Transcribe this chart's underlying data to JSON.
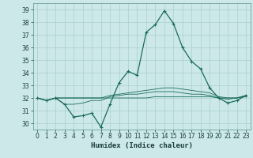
{
  "xlabel": "Humidex (Indice chaleur)",
  "background_color": "#cce8e8",
  "grid_color": "#aacfcf",
  "line_color": "#1a6b5a",
  "xlim": [
    -0.5,
    23.5
  ],
  "ylim": [
    29.5,
    39.5
  ],
  "xticks": [
    0,
    1,
    2,
    3,
    4,
    5,
    6,
    7,
    8,
    9,
    10,
    11,
    12,
    13,
    14,
    15,
    16,
    17,
    18,
    19,
    20,
    21,
    22,
    23
  ],
  "yticks": [
    30,
    31,
    32,
    33,
    34,
    35,
    36,
    37,
    38,
    39
  ],
  "series1": [
    32.0,
    31.8,
    32.0,
    31.5,
    30.5,
    30.6,
    30.8,
    29.7,
    31.5,
    33.2,
    34.1,
    33.8,
    37.2,
    37.8,
    38.9,
    37.9,
    36.0,
    34.9,
    34.3,
    32.8,
    32.0,
    31.6,
    31.8,
    32.2
  ],
  "series2": [
    32.0,
    31.8,
    32.0,
    32.0,
    32.0,
    32.0,
    32.0,
    32.0,
    32.0,
    32.0,
    32.0,
    32.0,
    32.0,
    32.1,
    32.1,
    32.1,
    32.1,
    32.1,
    32.1,
    32.1,
    32.0,
    32.0,
    32.0,
    32.1
  ],
  "series3": [
    32.0,
    31.8,
    32.0,
    32.0,
    32.0,
    32.0,
    32.0,
    32.0,
    32.2,
    32.3,
    32.4,
    32.5,
    32.6,
    32.7,
    32.8,
    32.8,
    32.7,
    32.6,
    32.5,
    32.4,
    32.1,
    32.0,
    32.0,
    32.2
  ],
  "series4": [
    32.0,
    31.8,
    32.0,
    31.5,
    31.5,
    31.6,
    31.8,
    31.8,
    32.1,
    32.2,
    32.3,
    32.3,
    32.4,
    32.5,
    32.5,
    32.5,
    32.4,
    32.3,
    32.3,
    32.2,
    32.0,
    31.9,
    32.0,
    32.2
  ]
}
